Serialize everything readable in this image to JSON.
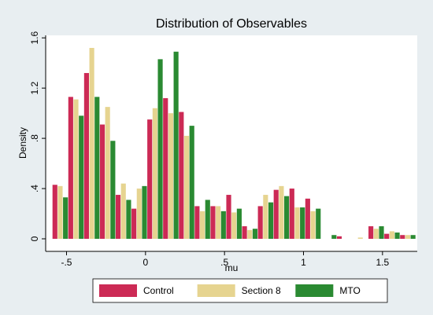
{
  "chart_data": {
    "type": "bar",
    "title": "Distribution of Observables",
    "x_label": "mu",
    "y_label": "Density",
    "x": [
      -0.54,
      -0.44,
      -0.34,
      -0.24,
      -0.14,
      -0.04,
      0.06,
      0.16,
      0.26,
      0.36,
      0.46,
      0.56,
      0.66,
      0.76,
      0.86,
      0.96,
      1.06,
      1.16,
      1.26,
      1.36,
      1.46,
      1.56,
      1.66
    ],
    "series": [
      {
        "name": "Control",
        "color": "#cc2a55",
        "values": [
          0.43,
          1.13,
          1.32,
          0.91,
          0.35,
          0.24,
          0.95,
          1.12,
          1.01,
          0.26,
          0.26,
          0.35,
          0.1,
          0.26,
          0.39,
          0.4,
          0.32,
          0,
          0.02,
          0,
          0.1,
          0.04,
          0.03
        ]
      },
      {
        "name": "Section 8",
        "color": "#e6d490",
        "values": [
          0.42,
          1.11,
          1.52,
          1.05,
          0.44,
          0.4,
          1.04,
          1.0,
          0.82,
          0.22,
          0.26,
          0.21,
          0.07,
          0.35,
          0.42,
          0.25,
          0.22,
          0,
          0,
          0.01,
          0.08,
          0.06,
          0.03
        ]
      },
      {
        "name": "MTO",
        "color": "#2a8a32",
        "values": [
          0.33,
          0.98,
          1.13,
          0.78,
          0.31,
          0.42,
          1.43,
          1.49,
          0.9,
          0.31,
          0.22,
          0.24,
          0.08,
          0.29,
          0.34,
          0.25,
          0.24,
          0.03,
          0,
          0,
          0.1,
          0.05,
          0.03
        ]
      }
    ],
    "xlim": [
      -0.632,
      1.72
    ],
    "ylim": [
      -0.1,
      1.62
    ],
    "xticks": [
      {
        "value": -0.5,
        "label": "-.5"
      },
      0,
      {
        "value": 0.5,
        "label": ".5"
      },
      1,
      1.5
    ],
    "yticks": [
      0,
      {
        "value": 0.4,
        "label": ".4"
      },
      {
        "value": 0.8,
        "label": ".8"
      },
      1.2,
      1.6
    ],
    "legend": "bottom"
  }
}
